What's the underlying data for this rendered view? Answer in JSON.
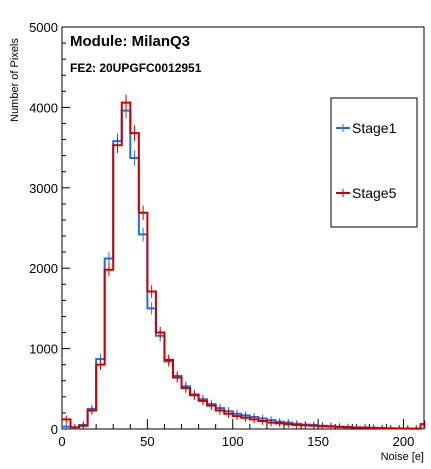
{
  "chart_data": {
    "type": "histogram",
    "title": "Module: MilanQ3",
    "subtitle": "FE2: 20UPGFC0012951",
    "xlabel": "Noise [e]",
    "ylabel": "Number of Pixels",
    "xlim": [
      0,
      212
    ],
    "ylim": [
      0,
      5000
    ],
    "xticks": [
      0,
      50,
      100,
      150,
      200
    ],
    "yticks": [
      0,
      1000,
      2000,
      3000,
      4000,
      5000
    ],
    "bin_width": 5,
    "bin_starts": [
      0,
      5,
      10,
      15,
      20,
      25,
      30,
      35,
      40,
      45,
      50,
      55,
      60,
      65,
      70,
      75,
      80,
      85,
      90,
      95,
      100,
      105,
      110,
      115,
      120,
      125,
      130,
      135,
      140,
      145,
      150,
      155,
      160,
      165,
      170,
      175,
      180,
      185,
      190,
      195,
      200,
      205,
      210
    ],
    "legend_position": "right",
    "series": [
      {
        "name": "Stage1",
        "color": "#1f6fe0",
        "values": [
          30,
          10,
          50,
          250,
          870,
          2120,
          3580,
          3960,
          3370,
          2420,
          1500,
          1160,
          840,
          660,
          530,
          430,
          370,
          310,
          260,
          220,
          190,
          170,
          150,
          130,
          110,
          90,
          80,
          65,
          55,
          50,
          40,
          35,
          30,
          25,
          20,
          18,
          15,
          12,
          10,
          8,
          6,
          5,
          4
        ]
      },
      {
        "name": "Stage5",
        "color": "#cc0000",
        "values": [
          120,
          20,
          40,
          230,
          800,
          1980,
          3530,
          4060,
          3680,
          2690,
          1710,
          1200,
          860,
          640,
          510,
          420,
          350,
          290,
          230,
          190,
          160,
          140,
          120,
          100,
          80,
          70,
          60,
          50,
          45,
          40,
          35,
          30,
          25,
          22,
          18,
          15,
          12,
          10,
          8,
          6,
          5,
          4,
          60
        ]
      }
    ]
  }
}
